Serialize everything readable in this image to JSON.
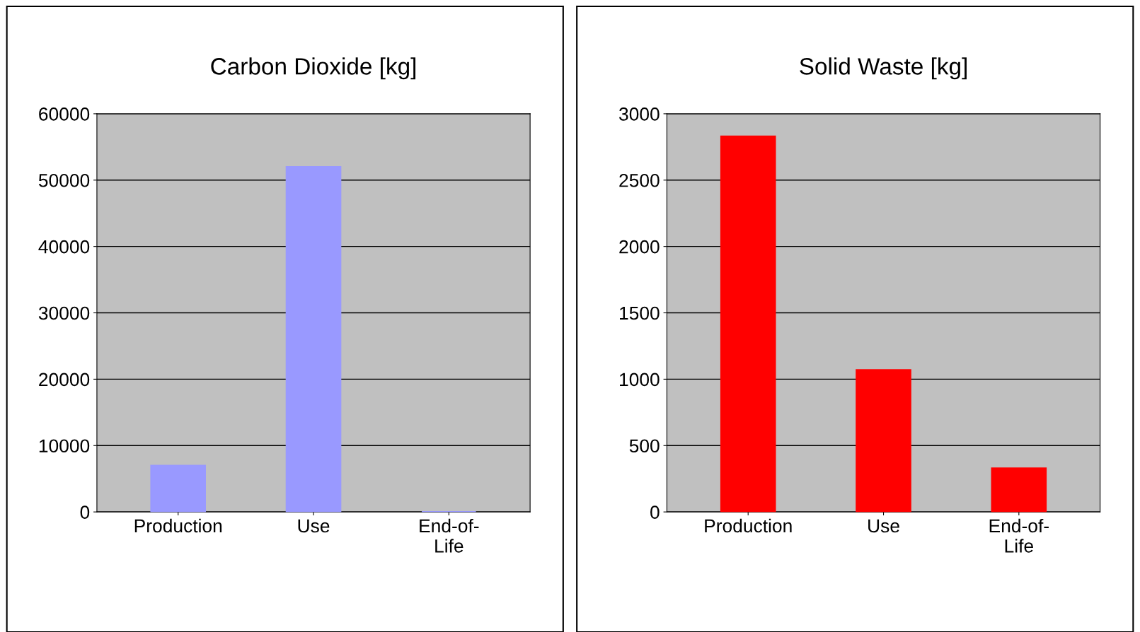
{
  "chart_data": [
    {
      "type": "bar",
      "title": "Carbon Dioxide [kg]",
      "categories": [
        "Production",
        "Use",
        "End-of-\nLife"
      ],
      "values": [
        7000,
        52000,
        0
      ],
      "color": "#9999ff",
      "ylim": [
        0,
        60000
      ],
      "yticks": [
        0,
        10000,
        20000,
        30000,
        40000,
        50000,
        60000
      ],
      "grid": "y"
    },
    {
      "type": "bar",
      "title": "Solid Waste [kg]",
      "categories": [
        "Production",
        "Use",
        "End-of-\nLife"
      ],
      "values": [
        2830,
        1070,
        330
      ],
      "color": "#ff0000",
      "ylim": [
        0,
        3000
      ],
      "yticks": [
        0,
        500,
        1000,
        1500,
        2000,
        2500,
        3000
      ],
      "grid": "y"
    }
  ]
}
